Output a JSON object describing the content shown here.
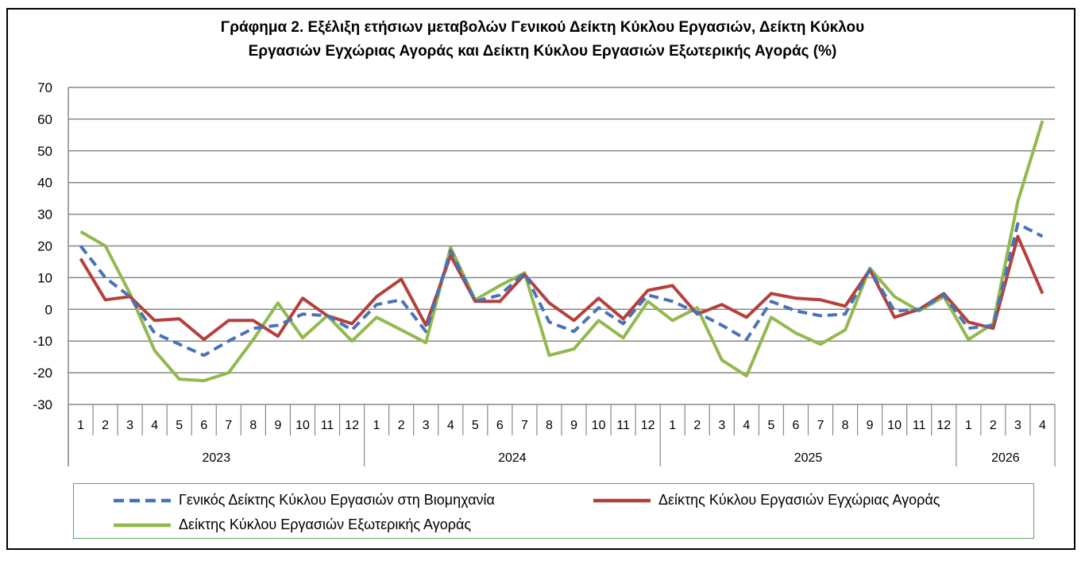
{
  "chart_data": {
    "type": "line",
    "title_lines": [
      "Γράφημα 2. Εξέλιξη ετήσιων μεταβολών Γενικού Δείκτη Κύκλου Εργασιών,  Δείκτη Κύκλου",
      "Εργασιών Εγχώριας Αγοράς και Δείκτη Κύκλου Εργασιών Εξωτερικής Αγοράς  (%)"
    ],
    "x_months": [
      "1",
      "2",
      "3",
      "4",
      "5",
      "6",
      "7",
      "8",
      "9",
      "10",
      "11",
      "12",
      "1",
      "2",
      "3",
      "4",
      "5",
      "6",
      "7",
      "8",
      "9",
      "10",
      "11",
      "12",
      "1",
      "2",
      "3",
      "4",
      "5",
      "6",
      "7",
      "8",
      "9",
      "10",
      "11",
      "12",
      "1",
      "2",
      "3",
      "4"
    ],
    "x_years": [
      {
        "label": "2023",
        "count": 12
      },
      {
        "label": "2024",
        "count": 12
      },
      {
        "label": "2025",
        "count": 12
      },
      {
        "label": "2026",
        "count": 4
      }
    ],
    "ylim": [
      -30,
      70
    ],
    "yticks": [
      "70",
      "60",
      "50",
      "40",
      "30",
      "20",
      "10",
      "0",
      "-10",
      "-20",
      "-30"
    ],
    "grid": true,
    "legend_position": "bottom",
    "series": [
      {
        "name": "Γενικός Δείκτης Κύκλου Εργασιών στη Βιομηχανία",
        "color": "#4a72b8",
        "style": "dashed",
        "values": [
          20,
          10,
          4,
          -7.5,
          -11,
          -14.5,
          -10,
          -6,
          -5,
          -1.5,
          -2,
          -6.5,
          1.5,
          3,
          -7,
          18.5,
          2.5,
          4.5,
          11.5,
          -4,
          -7,
          0.5,
          -4.5,
          4.5,
          2.5,
          -1,
          -5,
          -9.5,
          2.5,
          -0.5,
          -2,
          -1.5,
          12.5,
          -0.5,
          0,
          4.5,
          -6,
          -5,
          27,
          23
        ]
      },
      {
        "name": "Δείκτης Κύκλου Εργασιών  Εγχώριας Αγοράς",
        "color": "#b5403b",
        "style": "solid",
        "values": [
          16,
          3,
          4,
          -3.5,
          -3,
          -9.5,
          -3.5,
          -3.5,
          -8.5,
          3.5,
          -2,
          -4.5,
          4,
          9.5,
          -5,
          17,
          2.5,
          2.5,
          11,
          2,
          -3.5,
          3.5,
          -3,
          6,
          7.5,
          -1.5,
          1.5,
          -2.5,
          5,
          3.5,
          3,
          1,
          12.5,
          -2.5,
          0,
          5,
          -4,
          -6,
          23,
          5
        ]
      },
      {
        "name": "Δείκτης Κύκλου Εργασιών  Εξωτερικής Αγοράς",
        "color": "#92b94e",
        "style": "solid",
        "values": [
          24.5,
          20,
          5,
          -13,
          -22,
          -22.5,
          -20,
          -9.5,
          2,
          -9,
          -2,
          -10,
          -2.5,
          -6.5,
          -10.5,
          19.5,
          3,
          7.5,
          11.5,
          -14.5,
          -12.5,
          -3.5,
          -9,
          2.5,
          -3.5,
          0.5,
          -16,
          -21,
          -2.5,
          -7.5,
          -11,
          -6.5,
          13,
          4,
          -0.5,
          4,
          -9.5,
          -4.5,
          34,
          59.5
        ]
      }
    ]
  }
}
